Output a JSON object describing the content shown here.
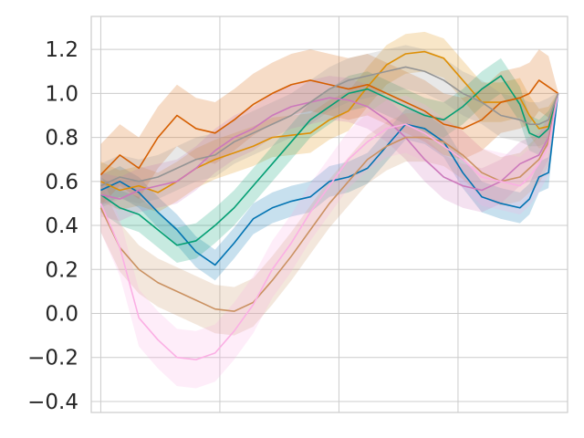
{
  "chart_data": {
    "type": "line",
    "title": "",
    "xlabel": "",
    "ylabel": "",
    "x": [
      0,
      4,
      8,
      12,
      16,
      20,
      24,
      28,
      32,
      36,
      40,
      44,
      48,
      52,
      56,
      60,
      64,
      68,
      72,
      76,
      80,
      84,
      88,
      90,
      92,
      94,
      96
    ],
    "xlim": [
      -2,
      98
    ],
    "ylim": [
      -0.45,
      1.35
    ],
    "yticks": [
      -0.4,
      -0.2,
      0.0,
      0.2,
      0.4,
      0.6,
      0.8,
      1.0,
      1.2
    ],
    "ytick_labels": [
      "−0.4",
      "−0.2",
      "0.0",
      "0.2",
      "0.4",
      "0.6",
      "0.8",
      "1.0",
      "1.2"
    ],
    "xticks": [
      0,
      25,
      50,
      75,
      100
    ],
    "grid": true,
    "legend": "none",
    "series": [
      {
        "color": "#0173b2",
        "values": [
          0.56,
          0.6,
          0.55,
          0.46,
          0.38,
          0.28,
          0.22,
          0.32,
          0.43,
          0.48,
          0.51,
          0.53,
          0.6,
          0.62,
          0.66,
          0.76,
          0.86,
          0.84,
          0.78,
          0.64,
          0.53,
          0.5,
          0.48,
          0.52,
          0.62,
          0.64,
          1.0
        ],
        "band": 0.07
      },
      {
        "color": "#de8f05",
        "values": [
          0.6,
          0.56,
          0.58,
          0.55,
          0.6,
          0.66,
          0.7,
          0.73,
          0.76,
          0.8,
          0.81,
          0.82,
          0.88,
          0.92,
          1.03,
          1.13,
          1.18,
          1.19,
          1.16,
          1.06,
          0.96,
          0.96,
          0.98,
          0.9,
          0.84,
          0.85,
          1.0
        ],
        "band": 0.09
      },
      {
        "color": "#029e73",
        "values": [
          0.54,
          0.48,
          0.45,
          0.38,
          0.31,
          0.33,
          0.4,
          0.48,
          0.58,
          0.68,
          0.78,
          0.88,
          0.94,
          1.0,
          1.02,
          0.98,
          0.94,
          0.9,
          0.88,
          0.94,
          1.02,
          1.08,
          0.95,
          0.82,
          0.8,
          0.84,
          1.0
        ],
        "band": 0.08
      },
      {
        "color": "#d55e00",
        "values": [
          0.63,
          0.72,
          0.66,
          0.8,
          0.9,
          0.84,
          0.82,
          0.88,
          0.95,
          1.0,
          1.04,
          1.06,
          1.04,
          1.02,
          1.04,
          1.0,
          0.96,
          0.92,
          0.86,
          0.84,
          0.88,
          0.96,
          0.98,
          1.0,
          1.06,
          1.03,
          1.0
        ],
        "band": 0.14
      },
      {
        "color": "#cc78bc",
        "values": [
          0.54,
          0.52,
          0.56,
          0.58,
          0.6,
          0.66,
          0.74,
          0.8,
          0.84,
          0.9,
          0.94,
          0.96,
          0.98,
          0.97,
          0.94,
          0.88,
          0.8,
          0.7,
          0.62,
          0.58,
          0.56,
          0.6,
          0.68,
          0.7,
          0.72,
          0.8,
          1.0
        ],
        "band": 0.1
      },
      {
        "color": "#ca9161",
        "values": [
          0.48,
          0.3,
          0.2,
          0.14,
          0.1,
          0.06,
          0.02,
          0.01,
          0.05,
          0.15,
          0.26,
          0.38,
          0.5,
          0.6,
          0.7,
          0.76,
          0.8,
          0.8,
          0.78,
          0.72,
          0.64,
          0.6,
          0.62,
          0.66,
          0.7,
          0.78,
          1.0
        ],
        "band": 0.11
      },
      {
        "color": "#fbafe4",
        "values": [
          0.5,
          0.3,
          -0.02,
          -0.12,
          -0.2,
          -0.21,
          -0.18,
          -0.08,
          0.04,
          0.2,
          0.32,
          0.46,
          0.58,
          0.7,
          0.78,
          0.84,
          0.86,
          0.82,
          0.76,
          0.7,
          0.62,
          0.6,
          0.58,
          0.62,
          0.68,
          0.76,
          1.0
        ],
        "band": 0.13
      },
      {
        "color": "#949494",
        "values": [
          0.58,
          0.62,
          0.6,
          0.62,
          0.66,
          0.7,
          0.72,
          0.78,
          0.82,
          0.86,
          0.9,
          0.96,
          1.02,
          1.06,
          1.08,
          1.1,
          1.12,
          1.1,
          1.06,
          1.0,
          0.96,
          0.9,
          0.88,
          0.86,
          0.86,
          0.88,
          1.0
        ],
        "band": 0.1
      }
    ]
  }
}
